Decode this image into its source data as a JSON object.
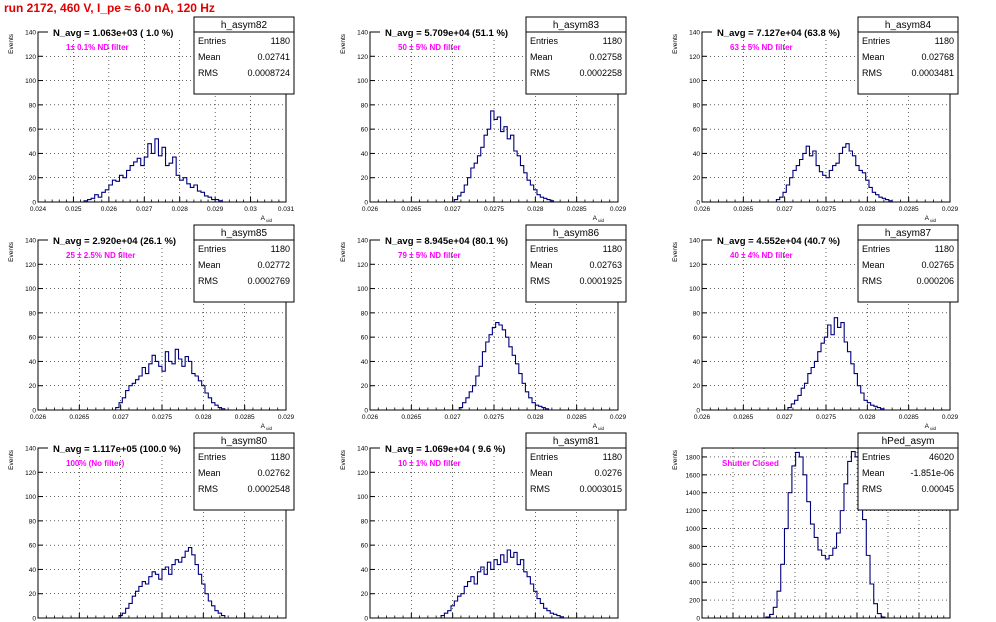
{
  "canvas": {
    "title": "run 2172,   460 V, I_pe ≈ 6.0 nA, 120 Hz",
    "title_color": "#e00000"
  },
  "style": {
    "line_color": "#00007f",
    "annotation_color": "#ff00ff",
    "grid": true
  },
  "chart_data": [
    {
      "type": "bar",
      "name": "h_asym82",
      "title": "N_avg = 1.063e+03 ( 1.0 %)",
      "annotation": "1± 0.1% ND filter",
      "ylabel": "Events",
      "xlabel": "A_uid",
      "stats": [
        [
          "Entries",
          "1180"
        ],
        [
          "Mean",
          "0.02741"
        ],
        [
          "RMS",
          "0.0008724"
        ]
      ],
      "xlim": [
        0.024,
        0.031
      ],
      "ylim": [
        0,
        140
      ],
      "xticks": [
        0.024,
        0.025,
        0.026,
        0.027,
        0.028,
        0.029,
        0.03,
        0.031
      ],
      "xtick_labels": [
        "0.024",
        "0.025",
        "0.026",
        "0.027",
        "0.028",
        "0.029",
        "0.03",
        "0.031"
      ],
      "yticks": [
        0,
        20,
        40,
        60,
        80,
        100,
        120,
        140
      ],
      "ytick_labels": [
        "0",
        "20",
        "40",
        "60",
        "80",
        "100",
        "120",
        "140"
      ],
      "x": [
        0.02535,
        0.02545,
        0.02555,
        0.02565,
        0.02575,
        0.02585,
        0.02595,
        0.02605,
        0.02615,
        0.02625,
        0.02635,
        0.02645,
        0.02655,
        0.02665,
        0.02675,
        0.02685,
        0.02695,
        0.02705,
        0.02715,
        0.02725,
        0.02735,
        0.02745,
        0.02755,
        0.02765,
        0.02775,
        0.02785,
        0.02795,
        0.02805,
        0.02815,
        0.02825,
        0.02835,
        0.02845,
        0.02855,
        0.02865,
        0.02875,
        0.02885,
        0.02895,
        0.02905,
        0.02915
      ],
      "values": [
        1,
        2,
        3,
        6,
        4,
        8,
        10,
        14,
        18,
        17,
        22,
        20,
        26,
        30,
        33,
        36,
        30,
        37,
        48,
        40,
        52,
        38,
        45,
        30,
        32,
        37,
        22,
        18,
        20,
        15,
        12,
        14,
        9,
        8,
        5,
        4,
        2,
        2,
        1
      ]
    },
    {
      "type": "bar",
      "name": "h_asym83",
      "title": "N_avg = 5.709e+04 (51.1 %)",
      "annotation": "50 ± 5% ND filter",
      "ylabel": "Events",
      "xlabel": "A_uid",
      "stats": [
        [
          "Entries",
          "1180"
        ],
        [
          "Mean",
          "0.02758"
        ],
        [
          "RMS",
          "0.0002258"
        ]
      ],
      "xlim": [
        0.026,
        0.029
      ],
      "ylim": [
        0,
        140
      ],
      "xticks": [
        0.026,
        0.0265,
        0.027,
        0.0275,
        0.028,
        0.0285,
        0.029
      ],
      "xtick_labels": [
        "0.026",
        "0.0265",
        "0.027",
        "0.0275",
        "0.028",
        "0.0285",
        "0.029"
      ],
      "yticks": [
        0,
        20,
        40,
        60,
        80,
        100,
        120,
        140
      ],
      "ytick_labels": [
        "0",
        "20",
        "40",
        "60",
        "80",
        "100",
        "120",
        "140"
      ],
      "x": [
        0.02704,
        0.02708,
        0.02712,
        0.02716,
        0.0272,
        0.02724,
        0.02728,
        0.02732,
        0.02736,
        0.0274,
        0.02744,
        0.02748,
        0.02752,
        0.02756,
        0.0276,
        0.02764,
        0.02768,
        0.02772,
        0.02776,
        0.0278,
        0.02784,
        0.02788,
        0.02792,
        0.02796,
        0.028,
        0.02804,
        0.02808,
        0.02812,
        0.02816,
        0.0282
      ],
      "values": [
        2,
        5,
        8,
        14,
        20,
        28,
        32,
        38,
        45,
        55,
        60,
        75,
        68,
        70,
        58,
        62,
        52,
        55,
        42,
        38,
        30,
        24,
        18,
        14,
        10,
        6,
        4,
        3,
        2,
        1
      ]
    },
    {
      "type": "bar",
      "name": "h_asym84",
      "title": "N_avg = 7.127e+04 (63.8 %)",
      "annotation": "63 ± 5% ND filter",
      "ylabel": "Events",
      "xlabel": "A_uid",
      "stats": [
        [
          "Entries",
          "1180"
        ],
        [
          "Mean",
          "0.02768"
        ],
        [
          "RMS",
          "0.0003481"
        ]
      ],
      "xlim": [
        0.026,
        0.029
      ],
      "ylim": [
        0,
        140
      ],
      "xticks": [
        0.026,
        0.0265,
        0.027,
        0.0275,
        0.028,
        0.0285,
        0.029
      ],
      "xtick_labels": [
        "0.026",
        "0.0265",
        "0.027",
        "0.0275",
        "0.028",
        "0.0285",
        "0.029"
      ],
      "yticks": [
        0,
        20,
        40,
        60,
        80,
        100,
        120,
        140
      ],
      "ytick_labels": [
        "0",
        "20",
        "40",
        "60",
        "80",
        "100",
        "120",
        "140"
      ],
      "x": [
        0.02692,
        0.02696,
        0.027,
        0.02704,
        0.02708,
        0.02712,
        0.02716,
        0.0272,
        0.02724,
        0.02728,
        0.02732,
        0.02736,
        0.0274,
        0.02744,
        0.02748,
        0.02752,
        0.02756,
        0.0276,
        0.02764,
        0.02768,
        0.02772,
        0.02776,
        0.0278,
        0.02784,
        0.02788,
        0.02792,
        0.02796,
        0.028,
        0.02804,
        0.02808,
        0.02812,
        0.02816,
        0.0282,
        0.02824,
        0.02828
      ],
      "values": [
        2,
        4,
        8,
        14,
        20,
        26,
        30,
        35,
        40,
        46,
        38,
        42,
        30,
        25,
        22,
        20,
        26,
        30,
        32,
        40,
        45,
        48,
        42,
        38,
        30,
        26,
        24,
        18,
        12,
        8,
        6,
        4,
        3,
        2,
        1
      ]
    },
    {
      "type": "bar",
      "name": "h_asym85",
      "title": "N_avg = 2.920e+04 (26.1 %)",
      "annotation": "25 ± 2.5% ND filter",
      "ylabel": "Events",
      "xlabel": "A_uid",
      "stats": [
        [
          "Entries",
          "1180"
        ],
        [
          "Mean",
          "0.02772"
        ],
        [
          "RMS",
          "0.0002769"
        ]
      ],
      "xlim": [
        0.026,
        0.029
      ],
      "ylim": [
        0,
        140
      ],
      "xticks": [
        0.026,
        0.0265,
        0.027,
        0.0275,
        0.028,
        0.0285,
        0.029
      ],
      "xtick_labels": [
        "0.026",
        "0.0265",
        "0.027",
        "0.0275",
        "0.028",
        "0.0285",
        "0.029"
      ],
      "yticks": [
        0,
        20,
        40,
        60,
        80,
        100,
        120,
        140
      ],
      "ytick_labels": [
        "0",
        "20",
        "40",
        "60",
        "80",
        "100",
        "120",
        "140"
      ],
      "x": [
        0.02696,
        0.027,
        0.02704,
        0.02708,
        0.02712,
        0.02716,
        0.0272,
        0.02724,
        0.02728,
        0.02732,
        0.02736,
        0.0274,
        0.02744,
        0.02748,
        0.02752,
        0.02756,
        0.0276,
        0.02764,
        0.02768,
        0.02772,
        0.02776,
        0.0278,
        0.02784,
        0.02788,
        0.02792,
        0.02796,
        0.028,
        0.02804,
        0.02808,
        0.02812,
        0.02816,
        0.0282,
        0.02824
      ],
      "values": [
        2,
        6,
        10,
        16,
        20,
        22,
        25,
        28,
        35,
        30,
        38,
        45,
        40,
        36,
        32,
        48,
        40,
        38,
        50,
        42,
        36,
        44,
        40,
        30,
        28,
        24,
        20,
        14,
        10,
        6,
        4,
        2,
        1
      ]
    },
    {
      "type": "bar",
      "name": "h_asym86",
      "title": "N_avg = 8.945e+04 (80.1 %)",
      "annotation": "79 ± 5% ND filter",
      "ylabel": "Events",
      "xlabel": "A_uid",
      "stats": [
        [
          "Entries",
          "1180"
        ],
        [
          "Mean",
          "0.02763"
        ],
        [
          "RMS",
          "0.0001925"
        ]
      ],
      "xlim": [
        0.026,
        0.029
      ],
      "ylim": [
        0,
        140
      ],
      "xticks": [
        0.026,
        0.0265,
        0.027,
        0.0275,
        0.028,
        0.0285,
        0.029
      ],
      "xtick_labels": [
        "0.026",
        "0.0265",
        "0.027",
        "0.0275",
        "0.028",
        "0.0285",
        "0.029"
      ],
      "yticks": [
        0,
        20,
        40,
        60,
        80,
        100,
        120,
        140
      ],
      "ytick_labels": [
        "0",
        "20",
        "40",
        "60",
        "80",
        "100",
        "120",
        "140"
      ],
      "x": [
        0.0271,
        0.02714,
        0.02718,
        0.02722,
        0.02726,
        0.0273,
        0.02734,
        0.02738,
        0.02742,
        0.02746,
        0.0275,
        0.02754,
        0.02758,
        0.02762,
        0.02766,
        0.0277,
        0.02774,
        0.02778,
        0.02782,
        0.02786,
        0.0279,
        0.02794,
        0.02798,
        0.02802,
        0.02806,
        0.0281,
        0.02814
      ],
      "values": [
        2,
        6,
        10,
        15,
        20,
        28,
        36,
        48,
        56,
        62,
        68,
        72,
        70,
        66,
        60,
        52,
        45,
        38,
        30,
        22,
        15,
        10,
        6,
        4,
        3,
        2,
        1
      ]
    },
    {
      "type": "bar",
      "name": "h_asym87",
      "title": "N_avg = 4.552e+04 (40.7 %)",
      "annotation": "40 ± 4% ND filter",
      "ylabel": "Events",
      "xlabel": "A_uid",
      "stats": [
        [
          "Entries",
          "1180"
        ],
        [
          "Mean",
          "0.02765"
        ],
        [
          "RMS",
          "0.000206"
        ]
      ],
      "xlim": [
        0.026,
        0.029
      ],
      "ylim": [
        0,
        140
      ],
      "xticks": [
        0.026,
        0.0265,
        0.027,
        0.0275,
        0.028,
        0.0285,
        0.029
      ],
      "xtick_labels": [
        "0.026",
        "0.0265",
        "0.027",
        "0.0275",
        "0.028",
        "0.0285",
        "0.029"
      ],
      "yticks": [
        0,
        20,
        40,
        60,
        80,
        100,
        120,
        140
      ],
      "ytick_labels": [
        "0",
        "20",
        "40",
        "60",
        "80",
        "100",
        "120",
        "140"
      ],
      "x": [
        0.02706,
        0.0271,
        0.02714,
        0.02718,
        0.02722,
        0.02726,
        0.0273,
        0.02734,
        0.02738,
        0.02742,
        0.02746,
        0.0275,
        0.02754,
        0.02758,
        0.02762,
        0.02766,
        0.0277,
        0.02774,
        0.02778,
        0.02782,
        0.02786,
        0.0279,
        0.02794,
        0.02798,
        0.02802,
        0.02806,
        0.0281,
        0.02814,
        0.02818
      ],
      "values": [
        2,
        5,
        8,
        12,
        18,
        22,
        30,
        35,
        40,
        48,
        55,
        60,
        70,
        62,
        76,
        68,
        72,
        56,
        48,
        38,
        30,
        20,
        14,
        8,
        6,
        4,
        3,
        2,
        1
      ]
    },
    {
      "type": "bar",
      "name": "h_asym80",
      "title": "N_avg = 1.117e+05 (100.0 %)",
      "annotation": "100% (No filter)",
      "ylabel": "Events",
      "xlabel": "A_uid",
      "stats": [
        [
          "Entries",
          "1180"
        ],
        [
          "Mean",
          "0.02762"
        ],
        [
          "RMS",
          "0.0002548"
        ]
      ],
      "xlim": [
        0.026,
        0.029
      ],
      "ylim": [
        0,
        140
      ],
      "xticks": [
        0.026,
        0.0265,
        0.027,
        0.0275,
        0.028,
        0.0285,
        0.029
      ],
      "xtick_labels": [
        "0.026",
        "0.0265",
        "0.027",
        "0.0275",
        "0.028",
        "0.0285",
        "0.029"
      ],
      "yticks": [
        0,
        20,
        40,
        60,
        80,
        100,
        120,
        140
      ],
      "ytick_labels": [
        "0",
        "20",
        "40",
        "60",
        "80",
        "100",
        "120",
        "140"
      ],
      "x": [
        0.027,
        0.02704,
        0.02708,
        0.02712,
        0.02716,
        0.0272,
        0.02724,
        0.02728,
        0.02732,
        0.02736,
        0.0274,
        0.02744,
        0.02748,
        0.02752,
        0.02756,
        0.0276,
        0.02764,
        0.02768,
        0.02772,
        0.02776,
        0.0278,
        0.02784,
        0.02788,
        0.02792,
        0.02796,
        0.028,
        0.02804,
        0.02808,
        0.02812,
        0.02816,
        0.0282,
        0.02824
      ],
      "values": [
        2,
        4,
        8,
        12,
        18,
        22,
        26,
        30,
        28,
        34,
        38,
        36,
        32,
        40,
        42,
        36,
        44,
        48,
        46,
        50,
        55,
        58,
        52,
        44,
        36,
        28,
        20,
        14,
        10,
        6,
        4,
        2
      ]
    },
    {
      "type": "bar",
      "name": "h_asym81",
      "title": "N_avg = 1.069e+04 ( 9.6 %)",
      "annotation": "10 ± 1% ND filter",
      "ylabel": "Events",
      "xlabel": "A_uid",
      "stats": [
        [
          "Entries",
          "1180"
        ],
        [
          "Mean",
          "0.0276"
        ],
        [
          "RMS",
          "0.0003015"
        ]
      ],
      "xlim": [
        0.026,
        0.029
      ],
      "ylim": [
        0,
        140
      ],
      "xticks": [
        0.026,
        0.0265,
        0.027,
        0.0275,
        0.028,
        0.0285,
        0.029
      ],
      "xtick_labels": [
        "0.026",
        "0.0265",
        "0.027",
        "0.0275",
        "0.028",
        "0.0285",
        "0.029"
      ],
      "yticks": [
        0,
        20,
        40,
        60,
        80,
        100,
        120,
        140
      ],
      "ytick_labels": [
        "0",
        "20",
        "40",
        "60",
        "80",
        "100",
        "120",
        "140"
      ],
      "x": [
        0.02688,
        0.02692,
        0.02696,
        0.027,
        0.02704,
        0.02708,
        0.02712,
        0.02716,
        0.0272,
        0.02724,
        0.02728,
        0.02732,
        0.02736,
        0.0274,
        0.02744,
        0.02748,
        0.02752,
        0.02756,
        0.0276,
        0.02764,
        0.02768,
        0.02772,
        0.02776,
        0.0278,
        0.02784,
        0.02788,
        0.02792,
        0.02796,
        0.028,
        0.02804,
        0.02808,
        0.02812,
        0.02816,
        0.0282,
        0.02824,
        0.02828,
        0.02832
      ],
      "values": [
        2,
        4,
        6,
        10,
        14,
        18,
        20,
        26,
        30,
        34,
        28,
        38,
        42,
        36,
        46,
        40,
        48,
        44,
        52,
        46,
        56,
        50,
        54,
        44,
        48,
        38,
        34,
        28,
        22,
        16,
        12,
        8,
        6,
        4,
        3,
        2,
        1
      ]
    },
    {
      "type": "bar",
      "name": "hPed_asym",
      "title": "",
      "annotation": "Shutter Closed",
      "ylabel": "Events",
      "xlabel": "",
      "stats": [
        [
          "Entries",
          "46020"
        ],
        [
          "Mean",
          "-1.851e-06"
        ],
        [
          "RMS",
          "0.00045"
        ]
      ],
      "xlim": [
        -0.002,
        0.002
      ],
      "ylim": [
        0,
        1900
      ],
      "xticks": [
        -0.002,
        -0.0015,
        -0.001,
        -0.0005,
        0,
        0.0005,
        0.001,
        0.0015,
        0.002
      ],
      "xtick_labels": [
        "-0.002",
        "-0.0015",
        "-0.001",
        "-0.0005",
        "0",
        "0.0005",
        "0.001",
        "0.0015",
        "0.002"
      ],
      "yticks": [
        0,
        200,
        400,
        600,
        800,
        1000,
        1200,
        1400,
        1600,
        1800
      ],
      "ytick_labels": [
        "0",
        "200",
        "400",
        "600",
        "800",
        "1000",
        "1200",
        "1400",
        "1600",
        "1800"
      ],
      "x": [
        -0.00094,
        -0.00088,
        -0.00082,
        -0.00076,
        -0.0007,
        -0.00064,
        -0.00058,
        -0.00052,
        -0.00046,
        -0.0004,
        -0.00034,
        -0.00028,
        -0.00022,
        -0.00016,
        -0.0001,
        -4e-05,
        2e-05,
        8e-05,
        0.00014,
        0.0002,
        0.00026,
        0.00032,
        0.00038,
        0.00044,
        0.0005,
        0.00056,
        0.00062,
        0.00068,
        0.00074,
        0.0008,
        0.00086,
        0.00092
      ],
      "values": [
        10,
        40,
        120,
        300,
        600,
        1000,
        1400,
        1700,
        1850,
        1800,
        1600,
        1300,
        1050,
        900,
        760,
        700,
        660,
        700,
        780,
        950,
        1200,
        1500,
        1750,
        1860,
        1800,
        1550,
        1100,
        700,
        380,
        160,
        50,
        10
      ]
    }
  ]
}
